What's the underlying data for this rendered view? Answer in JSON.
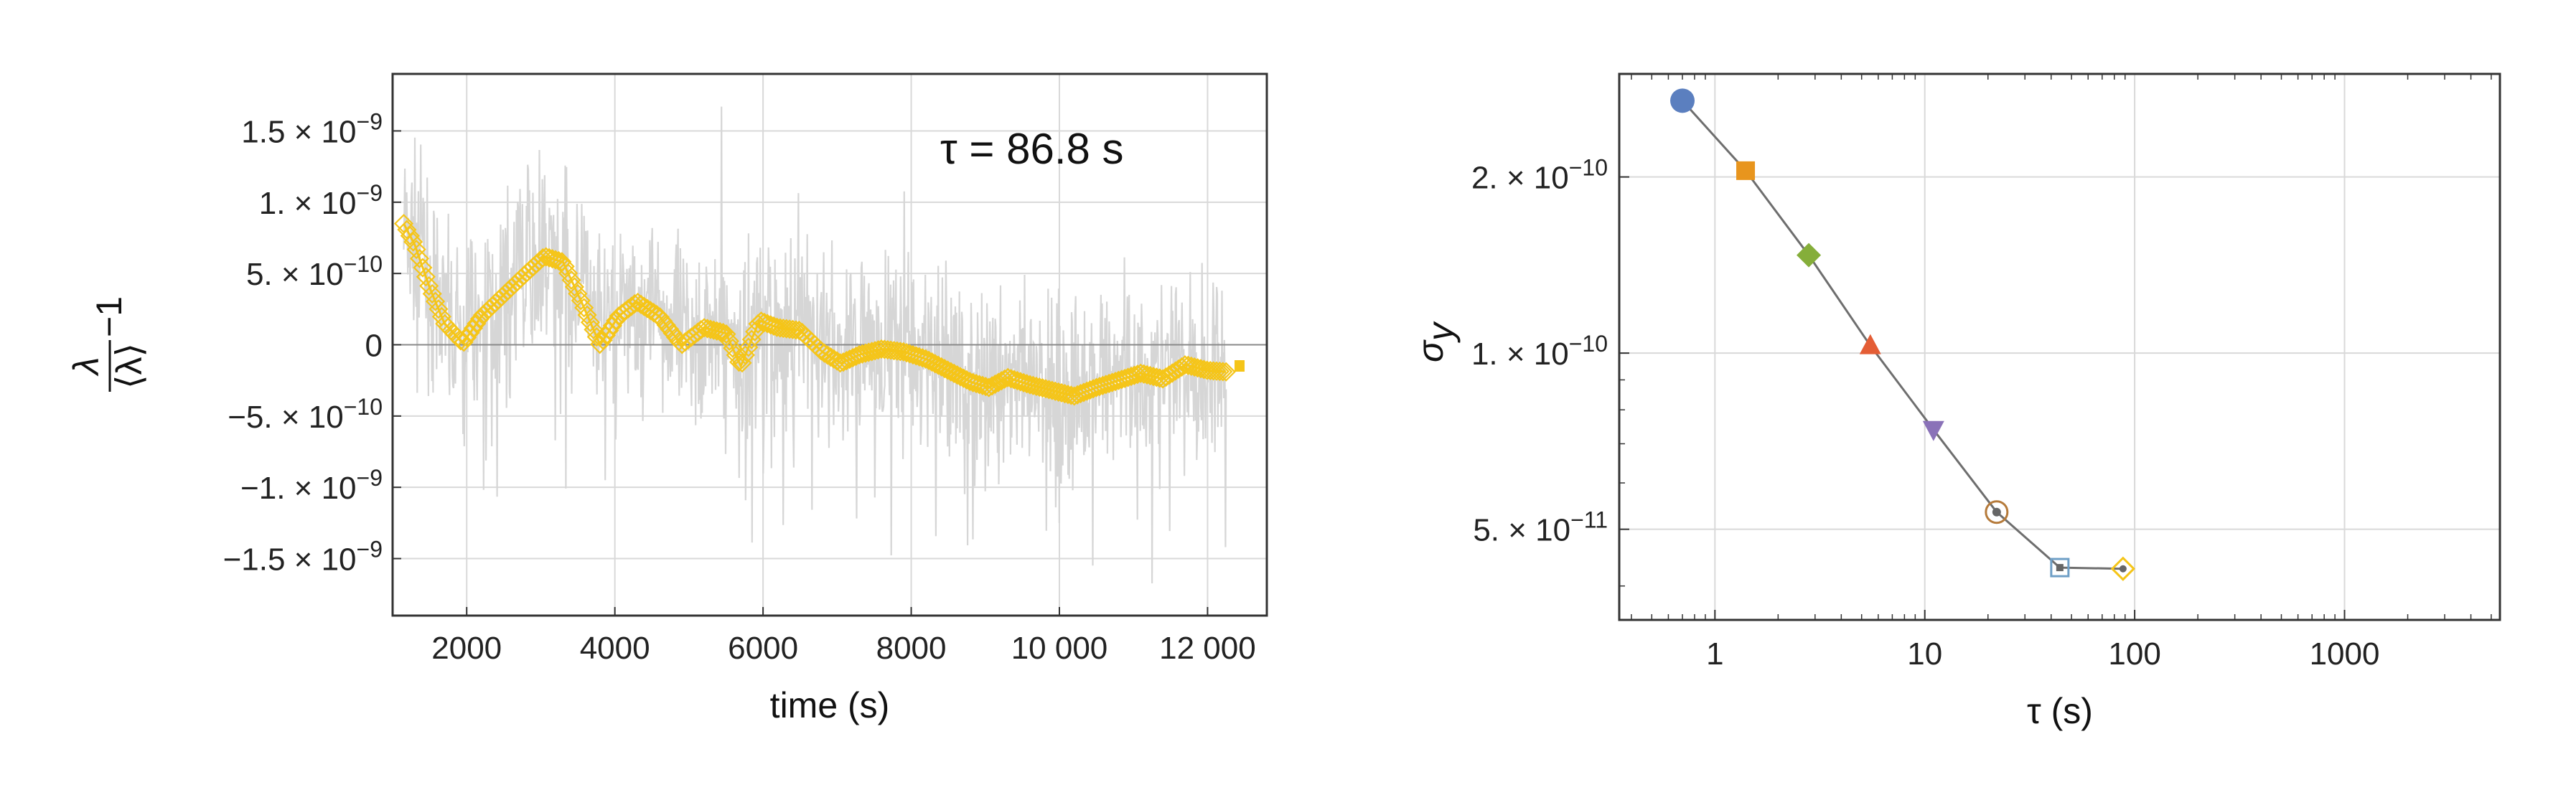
{
  "chart_data": [
    {
      "type": "line",
      "annotation": "τ = 86.8 s",
      "xlabel": "time (s)",
      "ylabel_numerator": "λ",
      "ylabel_denominator": "⟨λ⟩",
      "ylabel_suffix": "−1",
      "xlim": [
        1000,
        12800
      ],
      "ylim": [
        -1.9e-09,
        1.9e-09
      ],
      "x_ticks": [
        {
          "value": 2000,
          "label": "2000"
        },
        {
          "value": 4000,
          "label": "4000"
        },
        {
          "value": 6000,
          "label": "6000"
        },
        {
          "value": 8000,
          "label": "8000"
        },
        {
          "value": 10000,
          "label": "10 000"
        },
        {
          "value": 12000,
          "label": "12 000"
        }
      ],
      "y_ticks": [
        {
          "value": 1.5e-09,
          "mant": "1.5",
          "exp": "−9"
        },
        {
          "value": 1e-09,
          "mant": "1.",
          "exp": "−9"
        },
        {
          "value": 5e-10,
          "mant": "5.",
          "exp": "−10"
        },
        {
          "value": 0,
          "mant": "0",
          "exp": ""
        },
        {
          "value": -5e-10,
          "mant": "−5.",
          "exp": "−10"
        },
        {
          "value": -1e-09,
          "mant": "−1.",
          "exp": "−9"
        },
        {
          "value": -1.5e-09,
          "mant": "−1.5",
          "exp": "−9"
        }
      ],
      "grid": true,
      "series": [
        {
          "style": "raw-noise",
          "color": "#d6d6d6",
          "x_start": 1150,
          "x_end": 12250,
          "noise_amplitude": 4.5e-10
        },
        {
          "style": "averaged-diamonds",
          "color": "#f5c518",
          "x": [
            1150,
            1300,
            1500,
            1700,
            1950,
            2200,
            2500,
            2800,
            3050,
            3300,
            3550,
            3800,
            4050,
            4300,
            4600,
            4900,
            5200,
            5500,
            5700,
            5950,
            6200,
            6500,
            6800,
            7050,
            7300,
            7600,
            7900,
            8200,
            8500,
            8800,
            9050,
            9300,
            9600,
            9900,
            10200,
            10500,
            10800,
            11100,
            11400,
            11700,
            12000,
            12250
          ],
          "y": [
            8.5e-10,
            7e-10,
            4e-10,
            1.5e-10,
            1e-11,
            2e-10,
            3.5e-10,
            5e-10,
            6.2e-10,
            5.8e-10,
            3e-10,
            0.0,
            2e-10,
            3e-10,
            2e-10,
            0.0,
            1.2e-10,
            8e-11,
            -1.5e-10,
            1.7e-10,
            1.2e-10,
            1e-10,
            -5e-11,
            -1.3e-10,
            -7e-11,
            -3e-11,
            -5e-11,
            -1e-10,
            -1.8e-10,
            -2.6e-10,
            -3e-10,
            -2.3e-10,
            -2.8e-10,
            -3.2e-10,
            -3.6e-10,
            -3e-10,
            -2.5e-10,
            -2e-10,
            -2.4e-10,
            -1.4e-10,
            -1.8e-10,
            -1.9e-10
          ]
        }
      ],
      "legend_marker_color": "#f5c518"
    },
    {
      "type": "scatter",
      "scale": "log-log",
      "xlabel": "τ (s)",
      "ylabel": "σ",
      "ylabel_sub": "y",
      "xlim": [
        0.35,
        5500
      ],
      "ylim": [
        3.5e-11,
        3e-10
      ],
      "x_ticks": [
        {
          "value": 1,
          "label": "1"
        },
        {
          "value": 10,
          "label": "10"
        },
        {
          "value": 100,
          "label": "100"
        },
        {
          "value": 1000,
          "label": "1000"
        }
      ],
      "y_ticks": [
        {
          "value": 2e-10,
          "mant": "2.",
          "exp": "−10"
        },
        {
          "value": 1e-10,
          "mant": "1.",
          "exp": "−10"
        },
        {
          "value": 5e-11,
          "mant": "5.",
          "exp": "−11"
        }
      ],
      "grid": true,
      "line_color": "#6e6e6e",
      "points": [
        {
          "x": 0.7,
          "y": 2.7e-10,
          "marker": "circle",
          "color": "#5b7fbf"
        },
        {
          "x": 1.4,
          "y": 2.05e-10,
          "marker": "square",
          "color": "#e8951d"
        },
        {
          "x": 2.8,
          "y": 1.47e-10,
          "marker": "diamond",
          "color": "#85ae3a"
        },
        {
          "x": 5.5,
          "y": 1.03e-10,
          "marker": "triangle-up",
          "color": "#e45d35"
        },
        {
          "x": 11,
          "y": 7.4e-11,
          "marker": "triangle-down",
          "color": "#8a72b8"
        },
        {
          "x": 22,
          "y": 5.35e-11,
          "marker": "circle-dot",
          "color": "#b57a3a"
        },
        {
          "x": 44,
          "y": 4.3e-11,
          "marker": "square-open",
          "color": "#6f9fc6"
        },
        {
          "x": 88,
          "y": 4.28e-11,
          "marker": "diamond-open",
          "color": "#f5c518"
        }
      ]
    }
  ]
}
